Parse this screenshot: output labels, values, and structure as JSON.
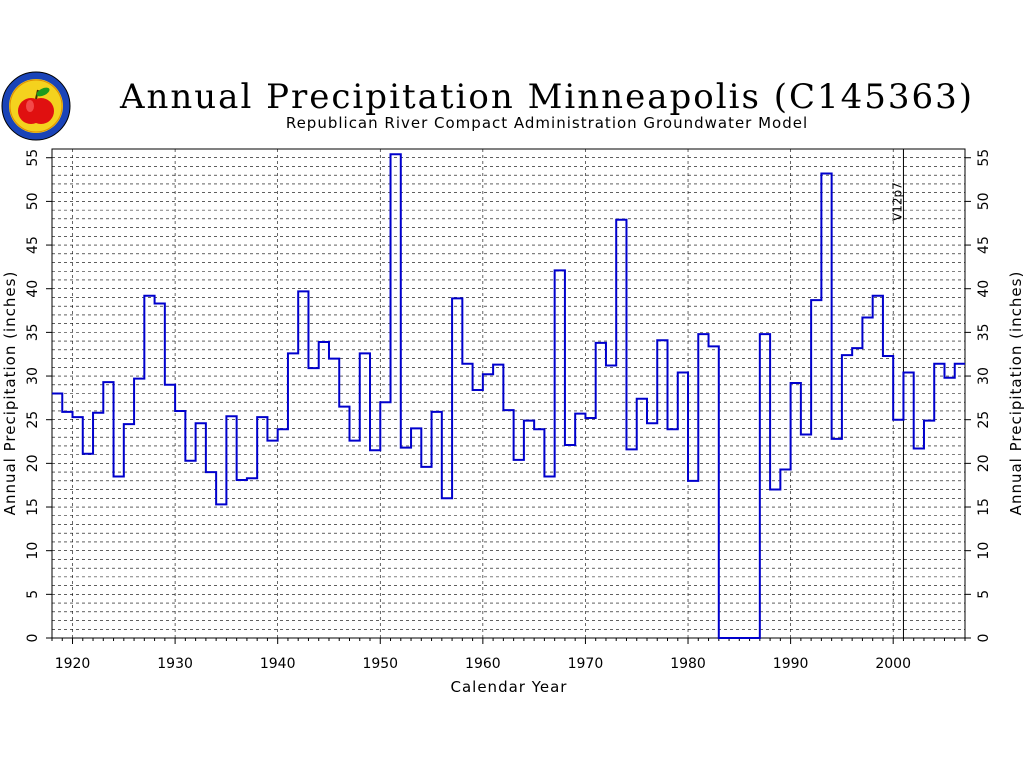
{
  "chart_data": {
    "type": "line",
    "step": true,
    "title": "Annual Precipitation Minneapolis (C145363)",
    "subtitle": "Republican River Compact Administration Groundwater Model",
    "xlabel": "Calendar Year",
    "ylabel": "Annual Precipitation (inches)",
    "xlim": [
      1918,
      2007
    ],
    "ylim": [
      0,
      56
    ],
    "x_ticks": [
      1920,
      1930,
      1940,
      1950,
      1960,
      1970,
      1980,
      1990,
      2000
    ],
    "y_ticks": [
      0,
      5,
      10,
      15,
      20,
      25,
      30,
      35,
      40,
      45,
      50,
      55
    ],
    "grid": true,
    "line_color": "#0000cc",
    "annotation": {
      "text": "V12p7",
      "x": 2001
    },
    "x": [
      1918,
      1919,
      1920,
      1921,
      1922,
      1923,
      1924,
      1925,
      1926,
      1927,
      1928,
      1929,
      1930,
      1931,
      1932,
      1933,
      1934,
      1935,
      1936,
      1937,
      1938,
      1939,
      1940,
      1941,
      1942,
      1943,
      1944,
      1945,
      1946,
      1947,
      1948,
      1949,
      1950,
      1951,
      1952,
      1953,
      1954,
      1955,
      1956,
      1957,
      1958,
      1959,
      1960,
      1961,
      1962,
      1963,
      1964,
      1965,
      1966,
      1967,
      1968,
      1969,
      1970,
      1971,
      1972,
      1973,
      1974,
      1975,
      1976,
      1977,
      1978,
      1979,
      1980,
      1981,
      1982,
      1983,
      1984,
      1985,
      1986,
      1987,
      1988,
      1989,
      1990,
      1991,
      1992,
      1993,
      1994,
      1995,
      1996,
      1997,
      1998,
      1999,
      2000,
      2001,
      2002,
      2003,
      2004,
      2005,
      2006
    ],
    "y": [
      28.0,
      25.9,
      25.3,
      21.1,
      25.8,
      29.3,
      18.5,
      24.5,
      29.7,
      39.2,
      38.3,
      29.0,
      26.0,
      20.3,
      24.6,
      19.0,
      15.3,
      25.4,
      18.1,
      18.3,
      25.3,
      22.6,
      23.9,
      32.6,
      39.7,
      30.9,
      33.9,
      32.0,
      26.5,
      22.6,
      32.6,
      21.5,
      27.0,
      55.4,
      21.8,
      24.0,
      19.6,
      25.9,
      16.0,
      38.9,
      31.4,
      28.4,
      30.2,
      31.3,
      26.1,
      20.4,
      24.9,
      23.9,
      18.5,
      42.1,
      22.1,
      25.7,
      25.2,
      33.8,
      31.2,
      47.9,
      21.6,
      27.4,
      24.6,
      34.1,
      23.9,
      30.4,
      18.0,
      34.8,
      33.4,
      0.0,
      0.0,
      0.0,
      0.0,
      34.8,
      17.0,
      19.3,
      29.2,
      23.3,
      38.7,
      53.2,
      22.8,
      32.4,
      33.2,
      36.7,
      39.2,
      32.3,
      25.0,
      30.4,
      21.7,
      24.9,
      31.4,
      29.8,
      31.4
    ]
  }
}
